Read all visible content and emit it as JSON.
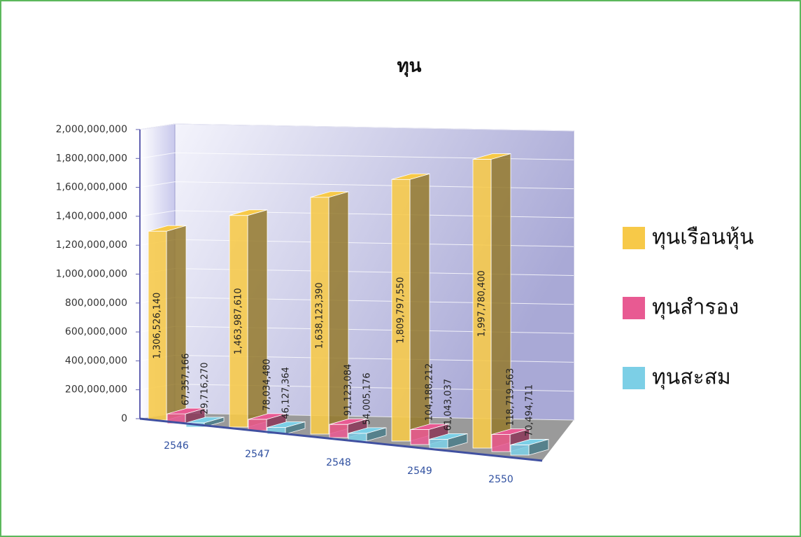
{
  "chart_data": {
    "type": "bar3d",
    "title": "ทุน",
    "categories": [
      "2546",
      "2547",
      "2548",
      "2549",
      "2550"
    ],
    "series": [
      {
        "name": "ทุนเรือนหุ้น",
        "color": "#f7c948",
        "values": [
          1306526140,
          1463987610,
          1638123390,
          1809797550,
          1997780400
        ],
        "value_labels": [
          "1,306,526,140",
          "1,463,987,610",
          "1,638,123,390",
          "1,809,797,550",
          "1,997,780,400"
        ]
      },
      {
        "name": "ทุนสำรอง",
        "color": "#e85a92",
        "values": [
          67357166,
          78034480,
          91123084,
          104188212,
          118719563
        ],
        "value_labels": [
          "67,357,166",
          "78,034,480",
          "91,123,084",
          "104,188,212",
          "118,719,563"
        ]
      },
      {
        "name": "ทุนสะสม",
        "color": "#7ccfe6",
        "values": [
          29716270,
          46127364,
          54005176,
          61043037,
          70494711
        ],
        "value_labels": [
          "29,716,270",
          "46,127,364",
          "54,005,176",
          "61,043,037",
          "70,494,711"
        ]
      }
    ],
    "ylim": [
      0,
      2000000000
    ],
    "yticks": [
      0,
      {
        "value": 200000000,
        "label": "200,000,000"
      },
      {
        "value": 400000000,
        "label": "400,000,000"
      },
      {
        "value": 600000000,
        "label": "600,000,000"
      },
      {
        "value": 800000000,
        "label": "800,000,000"
      },
      {
        "value": 1000000000,
        "label": "1,000,000,000"
      },
      {
        "value": 1200000000,
        "label": "1,200,000,000"
      },
      {
        "value": 1400000000,
        "label": "1,400,000,000"
      },
      {
        "value": 1600000000,
        "label": "1,600,000,000"
      },
      {
        "value": 1800000000,
        "label": "1,800,000,000"
      },
      {
        "value": 2000000000,
        "label": "2,000,000,000"
      }
    ],
    "grid": true,
    "legend": "right"
  }
}
